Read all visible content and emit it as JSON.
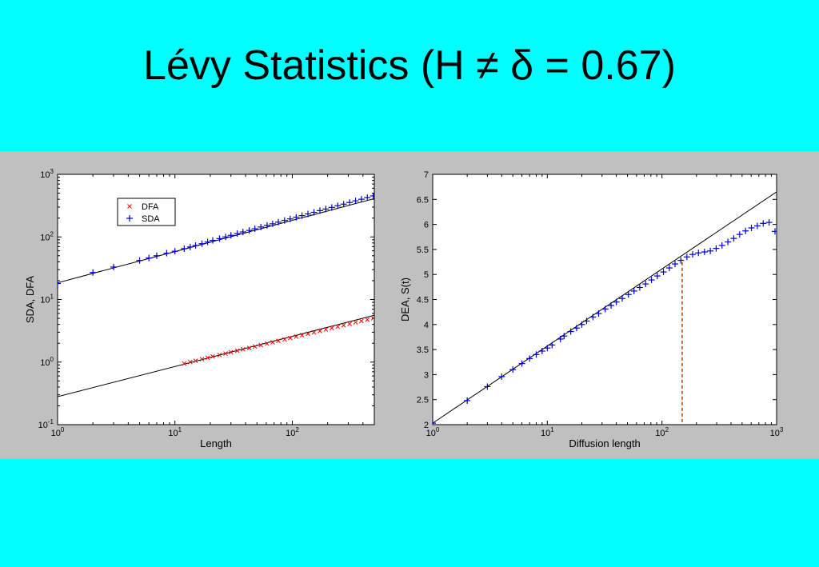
{
  "slide": {
    "title": "Lévy Statistics (H ≠ δ = 0.67)",
    "background": "#00ffff",
    "figure_background": "#c0c0c0"
  },
  "chart_data": [
    {
      "type": "scatter",
      "title": "",
      "xlabel": "Length",
      "ylabel": "SDA, DFA",
      "xscale": "log",
      "yscale": "log",
      "xlim": [
        1,
        500
      ],
      "ylim": [
        0.1,
        1000
      ],
      "x_ticks": [
        1,
        10,
        100
      ],
      "x_tick_labels": [
        "10^0",
        "10^1",
        "10^2"
      ],
      "y_ticks": [
        0.1,
        1,
        10,
        100,
        1000
      ],
      "y_tick_labels": [
        "10^-1",
        "10^0",
        "10^1",
        "10^2",
        "10^3"
      ],
      "grid": false,
      "legend": {
        "placement": "top-left",
        "entries": [
          "DFA",
          "SDA"
        ]
      },
      "series": [
        {
          "name": "DFA",
          "marker": "x",
          "color": "#ff0000",
          "x": [
            12,
            13.5,
            15,
            17,
            19,
            21,
            24,
            27,
            30,
            34,
            38,
            43,
            48,
            54,
            61,
            68,
            76,
            86,
            96,
            108,
            121,
            136,
            153,
            172,
            193,
            217,
            244,
            274,
            308,
            346,
            388,
            436,
            490
          ],
          "y": [
            0.95,
            1.0,
            1.05,
            1.11,
            1.17,
            1.23,
            1.3,
            1.37,
            1.44,
            1.52,
            1.6,
            1.68,
            1.77,
            1.87,
            1.97,
            2.07,
            2.18,
            2.3,
            2.42,
            2.55,
            2.69,
            2.83,
            2.98,
            3.14,
            3.31,
            3.49,
            3.67,
            3.87,
            4.08,
            4.3,
            4.53,
            4.77,
            5.02
          ]
        },
        {
          "name": "SDA",
          "marker": "+",
          "color": "#0000cc",
          "x": [
            1,
            2,
            3,
            5,
            6,
            7,
            8.5,
            10,
            12,
            13.5,
            15,
            17,
            19,
            21,
            24,
            27,
            30,
            34,
            38,
            43,
            48,
            54,
            61,
            68,
            76,
            86,
            96,
            108,
            121,
            136,
            153,
            172,
            193,
            217,
            244,
            274,
            308,
            346,
            388,
            436,
            490
          ],
          "y": [
            18,
            27,
            33,
            42,
            46,
            50,
            55,
            59,
            65,
            69,
            73,
            78,
            83,
            88,
            94,
            100,
            106,
            113,
            120,
            127,
            135,
            144,
            153,
            162,
            172,
            183,
            194,
            206,
            219,
            233,
            247,
            263,
            279,
            296,
            315,
            334,
            355,
            377,
            400,
            425,
            452
          ]
        }
      ],
      "fit_lines": [
        {
          "x": [
            1,
            500
          ],
          "y": [
            18.5,
            410
          ]
        },
        {
          "x": [
            1,
            500
          ],
          "y": [
            0.28,
            5.6
          ]
        }
      ]
    },
    {
      "type": "scatter",
      "title": "",
      "xlabel": "Diffusion length",
      "ylabel": "DEA, S(t)",
      "xscale": "log",
      "yscale": "linear",
      "xlim": [
        1,
        1000
      ],
      "ylim": [
        2,
        7
      ],
      "x_ticks": [
        1,
        10,
        100,
        1000
      ],
      "x_tick_labels": [
        "10^0",
        "10^1",
        "10^2",
        "10^3"
      ],
      "y_ticks": [
        2,
        2.5,
        3,
        3.5,
        4,
        4.5,
        5,
        5.5,
        6,
        6.5,
        7
      ],
      "y_tick_labels": [
        "2",
        "2.5",
        "3",
        "3.5",
        "4",
        "4.5",
        "5",
        "5.5",
        "6",
        "6.5",
        "7"
      ],
      "grid": false,
      "series": [
        {
          "name": "DEA",
          "marker": "+",
          "color": "#0000cc",
          "x": [
            1,
            2,
            3,
            4,
            5,
            6,
            7,
            8,
            9,
            10,
            11,
            13,
            14,
            16,
            18,
            20,
            22,
            25,
            28,
            32,
            36,
            40,
            45,
            51,
            57,
            64,
            72,
            81,
            91,
            103,
            116,
            130,
            146,
            165,
            185,
            208,
            235,
            264,
            297,
            334,
            376,
            423,
            476,
            536,
            603,
            679,
            764,
            860,
            968
          ],
          "y": [
            2.03,
            2.48,
            2.76,
            2.96,
            3.1,
            3.22,
            3.32,
            3.4,
            3.47,
            3.53,
            3.59,
            3.71,
            3.77,
            3.86,
            3.93,
            4.0,
            4.07,
            4.15,
            4.22,
            4.31,
            4.38,
            4.45,
            4.52,
            4.6,
            4.67,
            4.74,
            4.81,
            4.89,
            4.97,
            5.05,
            5.13,
            5.21,
            5.28,
            5.35,
            5.4,
            5.43,
            5.45,
            5.47,
            5.52,
            5.58,
            5.65,
            5.72,
            5.8,
            5.87,
            5.93,
            5.97,
            6.02,
            6.04,
            5.86
          ]
        }
      ],
      "fit_lines": [
        {
          "x": [
            1,
            1000
          ],
          "y": [
            2.03,
            6.65
          ]
        }
      ],
      "annotations": [
        {
          "type": "vertical-dashed-line",
          "x": 150,
          "y_range": [
            2.05,
            5.3
          ],
          "color": "#b04000"
        }
      ]
    }
  ]
}
